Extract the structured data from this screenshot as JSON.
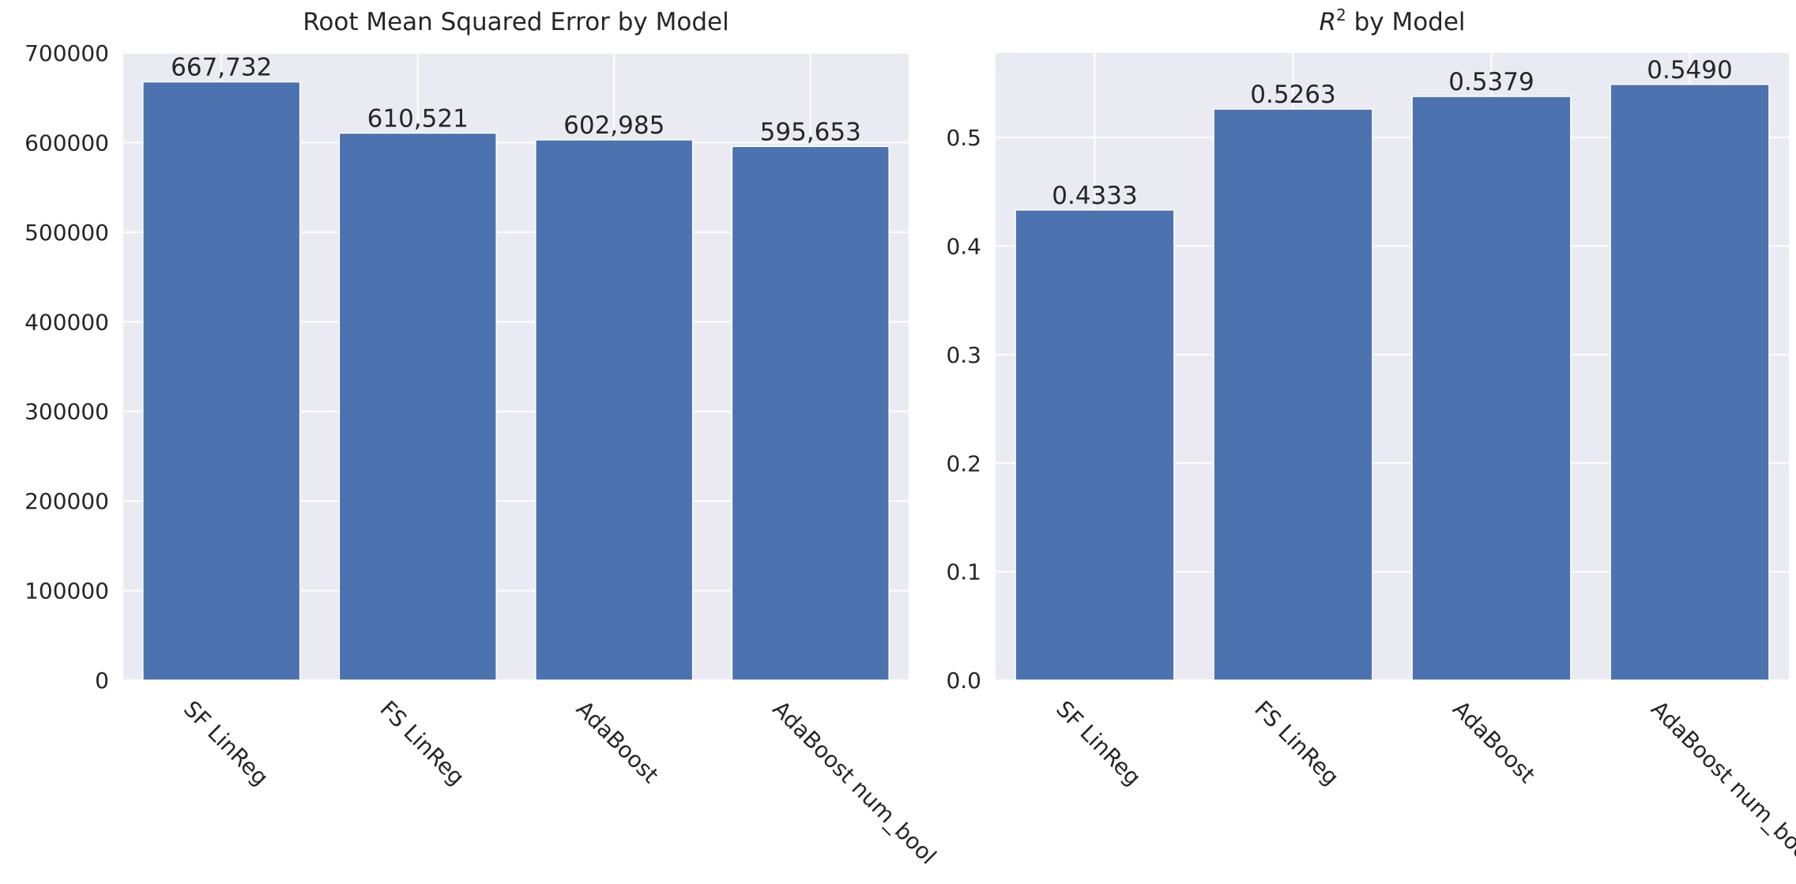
{
  "chart_data": [
    {
      "type": "bar",
      "title": "Root Mean Squared Error by Model",
      "xlabel": "",
      "ylabel": "",
      "categories": [
        "SF LinReg",
        "FS LinReg",
        "AdaBoost",
        "AdaBoost num_bool"
      ],
      "values": [
        667732,
        610521,
        602985,
        595653
      ],
      "value_labels": [
        "667,732",
        "610,521",
        "602,985",
        "595,653"
      ],
      "ylim": [
        0,
        700000
      ],
      "yticks": [
        0,
        100000,
        200000,
        300000,
        400000,
        500000,
        600000,
        700000
      ],
      "ytick_labels": [
        "0",
        "100000",
        "200000",
        "300000",
        "400000",
        "500000",
        "600000",
        "700000"
      ],
      "grid": true,
      "bar_color": "#4c72b0",
      "background_color": "#eaeaf2"
    },
    {
      "type": "bar",
      "title": "by Model",
      "title_math": "R",
      "title_superscript": "2",
      "xlabel": "",
      "ylabel": "",
      "categories": [
        "SF LinReg",
        "FS LinReg",
        "AdaBoost",
        "AdaBoost num_bool"
      ],
      "values": [
        0.4333,
        0.5263,
        0.5379,
        0.549
      ],
      "value_labels": [
        "0.4333",
        "0.5263",
        "0.5379",
        "0.5490"
      ],
      "ylim": [
        0,
        0.578
      ],
      "yticks": [
        0,
        0.1,
        0.2,
        0.3,
        0.4,
        0.5
      ],
      "ytick_labels": [
        "0.0",
        "0.1",
        "0.2",
        "0.3",
        "0.4",
        "0.5"
      ],
      "grid": true,
      "bar_color": "#4c72b0",
      "background_color": "#eaeaf2"
    }
  ]
}
